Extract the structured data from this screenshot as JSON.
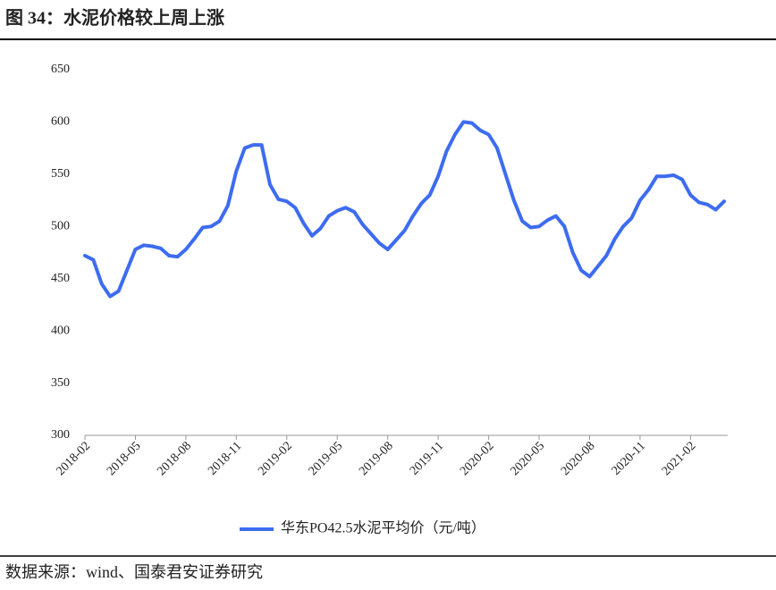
{
  "chart_data": {
    "type": "line",
    "title": "图 34：水泥价格较上周上涨",
    "source": "数据来源：wind、国泰君安证券研究",
    "categories": [
      "2018-02",
      null,
      null,
      null,
      null,
      null,
      "2018-05",
      null,
      null,
      null,
      null,
      null,
      "2018-08",
      null,
      null,
      null,
      null,
      null,
      "2018-11",
      null,
      null,
      null,
      null,
      null,
      "2019-02",
      null,
      null,
      null,
      null,
      null,
      "2019-05",
      null,
      null,
      null,
      null,
      null,
      "2019-08",
      null,
      null,
      null,
      null,
      null,
      "2019-11",
      null,
      null,
      null,
      null,
      null,
      "2020-02",
      null,
      null,
      null,
      null,
      null,
      "2020-05",
      null,
      null,
      null,
      null,
      null,
      "2020-08",
      null,
      null,
      null,
      null,
      null,
      "2020-11",
      null,
      null,
      null,
      null,
      null,
      "2021-02",
      null,
      null,
      null,
      null
    ],
    "series": [
      {
        "name": "华东PO42.5水泥平均价（元/吨）",
        "color": "#3d6cf0",
        "values": [
          472,
          468,
          445,
          433,
          438,
          458,
          478,
          482,
          481,
          479,
          472,
          471,
          478,
          488,
          499,
          500,
          505,
          520,
          553,
          575,
          578,
          578,
          540,
          526,
          524,
          518,
          503,
          491,
          498,
          510,
          515,
          518,
          514,
          502,
          493,
          484,
          478,
          487,
          496,
          510,
          522,
          530,
          548,
          572,
          588,
          600,
          599,
          592,
          588,
          575,
          550,
          525,
          505,
          499,
          500,
          506,
          510,
          500,
          475,
          458,
          452,
          462,
          472,
          488,
          500,
          508,
          525,
          535,
          548,
          548,
          549,
          545,
          530,
          523,
          521,
          516,
          524
        ]
      }
    ],
    "ylim": [
      300,
      650
    ],
    "yticks": [
      300,
      350,
      400,
      450,
      500,
      550,
      600,
      650
    ],
    "grid": false
  }
}
